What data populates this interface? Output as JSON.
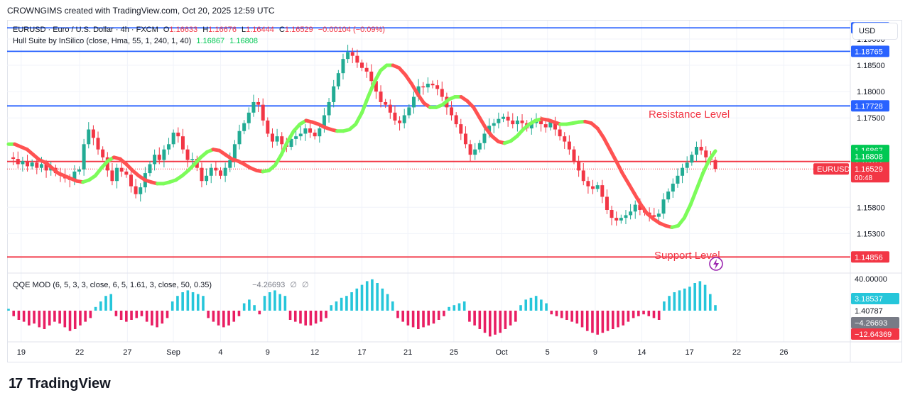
{
  "header": {
    "credit": "CROWNGIMS created with TradingView.com, Oct 20, 2025 12:59 UTC"
  },
  "legend": {
    "symbol": "EURUSD · Euro / U.S. Dollar · 4h · FXCM",
    "o_label": "O",
    "o": "1.16633",
    "h_label": "H",
    "h": "1.16676",
    "l_label": "L",
    "l": "1.16444",
    "c_label": "C",
    "c": "1.16529",
    "change": "−0.00104 (−0.09%)",
    "hull_label": "Hull Suite by InSilico (close, Hma, 55, 1, 240, 1, 40)",
    "hull_v1": "1.16867",
    "hull_v2": "1.16808",
    "qqe_label": "QQE MOD (6, 5, 3, 3, close, 6, 5, 1.61, 3, close, 50, 0.35)",
    "qqe_value": "−4.26693",
    "qqe_na1": "∅",
    "qqe_na2": "∅"
  },
  "currency_button": "USD",
  "annotations": {
    "resistance": "Resistance Level",
    "support": "Support Level"
  },
  "footer": {
    "brand": "TradingView",
    "logo_mark": "17"
  },
  "colors": {
    "up": "#22ab94",
    "down": "#f23645",
    "blue_line": "#2962ff",
    "red_line": "#f23645",
    "hull_up": "#7cfc5a",
    "hull_down": "#ff5252",
    "hist_pos": "#26c6da",
    "hist_neg": "#e91e63",
    "hist_grey": "#9e9e9e"
  },
  "chart_data": {
    "type": "candlestick",
    "title": "EURUSD · Euro / U.S. Dollar · 4h · FXCM",
    "ylim": [
      1.1455,
      1.1935
    ],
    "y_ticks": [
      "1.19000",
      "1.18500",
      "1.18000",
      "1.17500",
      "1.15800",
      "1.15300"
    ],
    "y_tick_values": [
      1.19,
      1.185,
      1.18,
      1.175,
      1.158,
      1.153
    ],
    "x_tick_labels": [
      "19",
      "22",
      "27",
      "Sep",
      "4",
      "9",
      "12",
      "17",
      "21",
      "25",
      "Oct",
      "5",
      "9",
      "14",
      "17",
      "22",
      "26"
    ],
    "x_tick_units": [
      0.1,
      9.9,
      17.9,
      25.6,
      33.5,
      41.4,
      49.3,
      57.2,
      64.9,
      72.6,
      80.6,
      88.3,
      96.3,
      104.1,
      112.1,
      120.0,
      127.9
    ],
    "horizontal_levels": [
      {
        "value": 1.19212,
        "label": "1.19212",
        "color": "#2962ff"
      },
      {
        "value": 1.18765,
        "label": "1.18765",
        "color": "#2962ff"
      },
      {
        "value": 1.17728,
        "label": "1.17728",
        "color": "#2962ff"
      },
      {
        "value": 1.16671,
        "label": "1.16671",
        "color": "#f23645"
      },
      {
        "value": 1.14856,
        "label": "1.14856",
        "color": "#f23645"
      }
    ],
    "hull_values": [
      {
        "value": 1.16867,
        "label": "1.16867"
      },
      {
        "value": 1.16808,
        "label": "1.16808"
      }
    ],
    "last_price": {
      "symbol": "EURUSD",
      "value": 1.16529,
      "label": "1.16529",
      "countdown": "00:48"
    },
    "price_path": [
      1.1675,
      1.1672,
      1.1662,
      1.1668,
      1.1658,
      1.1665,
      1.1655,
      1.1662,
      1.165,
      1.1655,
      1.1645,
      1.164,
      1.1635,
      1.1632,
      1.1648,
      1.1652,
      1.17,
      1.1728,
      1.1712,
      1.169,
      1.1675,
      1.165,
      1.163,
      1.1655,
      1.1648,
      1.1642,
      1.162,
      1.1605,
      1.1618,
      1.1645,
      1.1662,
      1.168,
      1.167,
      1.169,
      1.17,
      1.1722,
      1.1715,
      1.169,
      1.167,
      1.1672,
      1.1655,
      1.163,
      1.164,
      1.1655,
      1.165,
      1.164,
      1.1655,
      1.167,
      1.17,
      1.1725,
      1.174,
      1.176,
      1.178,
      1.1775,
      1.1745,
      1.172,
      1.1705,
      1.1715,
      1.17,
      1.1695,
      1.171,
      1.1715,
      1.172,
      1.173,
      1.1722,
      1.1715,
      1.173,
      1.1755,
      1.178,
      1.181,
      1.1835,
      1.1862,
      1.1875,
      1.1868,
      1.1855,
      1.1845,
      1.1838,
      1.182,
      1.18,
      1.178,
      1.1775,
      1.176,
      1.1745,
      1.174,
      1.1755,
      1.177,
      1.179,
      1.181,
      1.1808,
      1.1815,
      1.1812,
      1.1805,
      1.179,
      1.177,
      1.1755,
      1.1738,
      1.172,
      1.17,
      1.168,
      1.169,
      1.1702,
      1.172,
      1.1735,
      1.174,
      1.1748,
      1.1752,
      1.1745,
      1.1738,
      1.1745,
      1.174,
      1.173,
      1.174,
      1.1745,
      1.1738,
      1.1732,
      1.1742,
      1.1728,
      1.1715,
      1.1705,
      1.169,
      1.1668,
      1.165,
      1.163,
      1.162,
      1.1615,
      1.1622,
      1.16,
      1.1575,
      1.156,
      1.1555,
      1.156,
      1.1565,
      1.1572,
      1.1585,
      1.1575,
      1.157,
      1.1565,
      1.1562,
      1.1568,
      1.1595,
      1.161,
      1.1625,
      1.164,
      1.1655,
      1.1665,
      1.168,
      1.1695,
      1.1688,
      1.1675,
      1.167,
      1.1653
    ],
    "hull_line": [
      1.17,
      1.17,
      1.1695,
      1.169,
      1.168,
      1.167,
      1.1665,
      1.1655,
      1.1645,
      1.164,
      1.1635,
      1.163,
      1.1628,
      1.1632,
      1.164,
      1.1655,
      1.1668,
      1.1675,
      1.1672,
      1.1662,
      1.165,
      1.164,
      1.1632,
      1.1628,
      1.1625,
      1.1625,
      1.1628,
      1.1632,
      1.164,
      1.165,
      1.1662,
      1.1675,
      1.1685,
      1.169,
      1.1688,
      1.168,
      1.1672,
      1.1668,
      1.1662,
      1.1655,
      1.165,
      1.1648,
      1.165,
      1.166,
      1.168,
      1.1705,
      1.1725,
      1.1738,
      1.1745,
      1.1742,
      1.1738,
      1.1732,
      1.1728,
      1.1725,
      1.1725,
      1.1728,
      1.1738,
      1.176,
      1.179,
      1.1818,
      1.184,
      1.185,
      1.185,
      1.1845,
      1.1832,
      1.1815,
      1.1795,
      1.1778,
      1.177,
      1.177,
      1.1775,
      1.1785,
      1.179,
      1.179,
      1.1782,
      1.177,
      1.175,
      1.173,
      1.1715,
      1.1705,
      1.1702,
      1.1706,
      1.1715,
      1.1728,
      1.1738,
      1.1745,
      1.1748,
      1.1746,
      1.1742,
      1.1738,
      1.1738,
      1.174,
      1.1742,
      1.1743,
      1.174,
      1.173,
      1.1712,
      1.169,
      1.1668,
      1.1645,
      1.1625,
      1.1605,
      1.1585,
      1.1568,
      1.1558,
      1.155,
      1.1545,
      1.1542,
      1.1545,
      1.156,
      1.1585,
      1.1615,
      1.1645,
      1.167,
      1.1687
    ],
    "qqe_hist": [
      1,
      -3,
      -5,
      -6,
      -8,
      -7,
      -9,
      -10,
      -8,
      -6,
      -7,
      -9,
      -11,
      -10,
      -8,
      -6,
      -4,
      2,
      5,
      8,
      9,
      -3,
      -5,
      -6,
      -5,
      -4,
      -3,
      -6,
      -8,
      -9,
      -7,
      -4,
      5,
      8,
      10,
      11,
      10,
      9,
      8,
      -4,
      -6,
      -8,
      -9,
      -8,
      -6,
      -3,
      4,
      6,
      3,
      -2,
      8,
      10,
      11,
      9,
      8,
      -5,
      -6,
      -7,
      -8,
      -8,
      -7,
      -6,
      -4,
      3,
      5,
      7,
      8,
      10,
      12,
      14,
      16,
      17,
      15,
      12,
      9,
      5,
      -4,
      -6,
      -8,
      -9,
      -10,
      -9,
      -8,
      -7,
      -5,
      -3,
      2,
      3,
      4,
      5,
      -6,
      -8,
      -10,
      -12,
      -14,
      -13,
      -12,
      -10,
      -8,
      -6,
      3,
      6,
      7,
      8,
      6,
      4,
      -2,
      -3,
      -4,
      -5,
      -6,
      -7,
      -9,
      -11,
      -12,
      -13,
      -12,
      -11,
      -10,
      -9,
      -8,
      -6,
      -4,
      -3,
      -2,
      -3,
      -4,
      -5,
      5,
      8,
      10,
      11,
      12,
      13,
      15,
      16,
      14,
      9,
      3
    ],
    "qqe_axis": [
      {
        "value": 40.0,
        "label": "40.00000"
      },
      {
        "value": 3.18537,
        "label": "3.18537"
      },
      {
        "value": 1.40787,
        "label": "1.40787"
      },
      {
        "value": -4.26693,
        "label": "−4.26693"
      },
      {
        "value": -12.64369,
        "label": "−12.64369"
      }
    ]
  }
}
